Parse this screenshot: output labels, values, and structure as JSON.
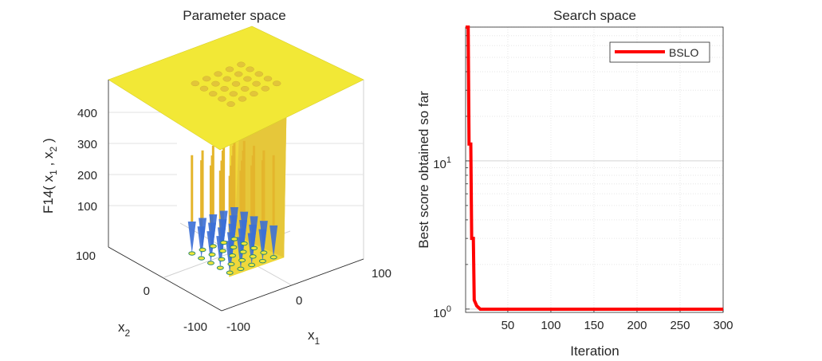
{
  "chart_data": [
    {
      "type": "surface3d",
      "title": "Parameter space",
      "zlabel": "F14( x",
      "zlabel_sub1": "1",
      "zlabel_mid": " , x",
      "zlabel_sub2": "2",
      "zlabel_end": " )",
      "xlabel": "x",
      "xlabel_sub": "1",
      "ylabel": "x",
      "ylabel_sub": "2",
      "x_ticks": [
        "-100",
        "0",
        "100"
      ],
      "y_ticks": [
        "-100",
        "0",
        "100"
      ],
      "z_ticks": [
        "100",
        "200",
        "300",
        "400"
      ],
      "x_range": [
        -100,
        100
      ],
      "y_range": [
        -100,
        100
      ],
      "z_range": [
        0,
        500
      ],
      "plateau_value": 500,
      "well_grid": [
        -32,
        -16,
        0,
        16,
        32
      ],
      "surface_color": "#f2e836",
      "well_color": "#3b6fd6"
    },
    {
      "type": "line",
      "title": "Search space",
      "xlabel": "Iteration",
      "ylabel": "Best score obtained so far",
      "yscale": "log",
      "xlim": [
        1,
        300
      ],
      "ylim": [
        0.95,
        80
      ],
      "x_ticks": [
        50,
        100,
        150,
        200,
        250,
        300
      ],
      "y_tick_base": "10",
      "y_tick_exps": [
        "0",
        "1"
      ],
      "legend_position": "top-right",
      "series": [
        {
          "name": "BSLO",
          "color": "#ff0000",
          "x": [
            1,
            4,
            5,
            7,
            8,
            10,
            11,
            14,
            18,
            300
          ],
          "y": [
            80,
            80,
            13,
            13,
            3.0,
            3.0,
            1.15,
            1.05,
            0.998,
            0.998
          ]
        }
      ]
    }
  ]
}
